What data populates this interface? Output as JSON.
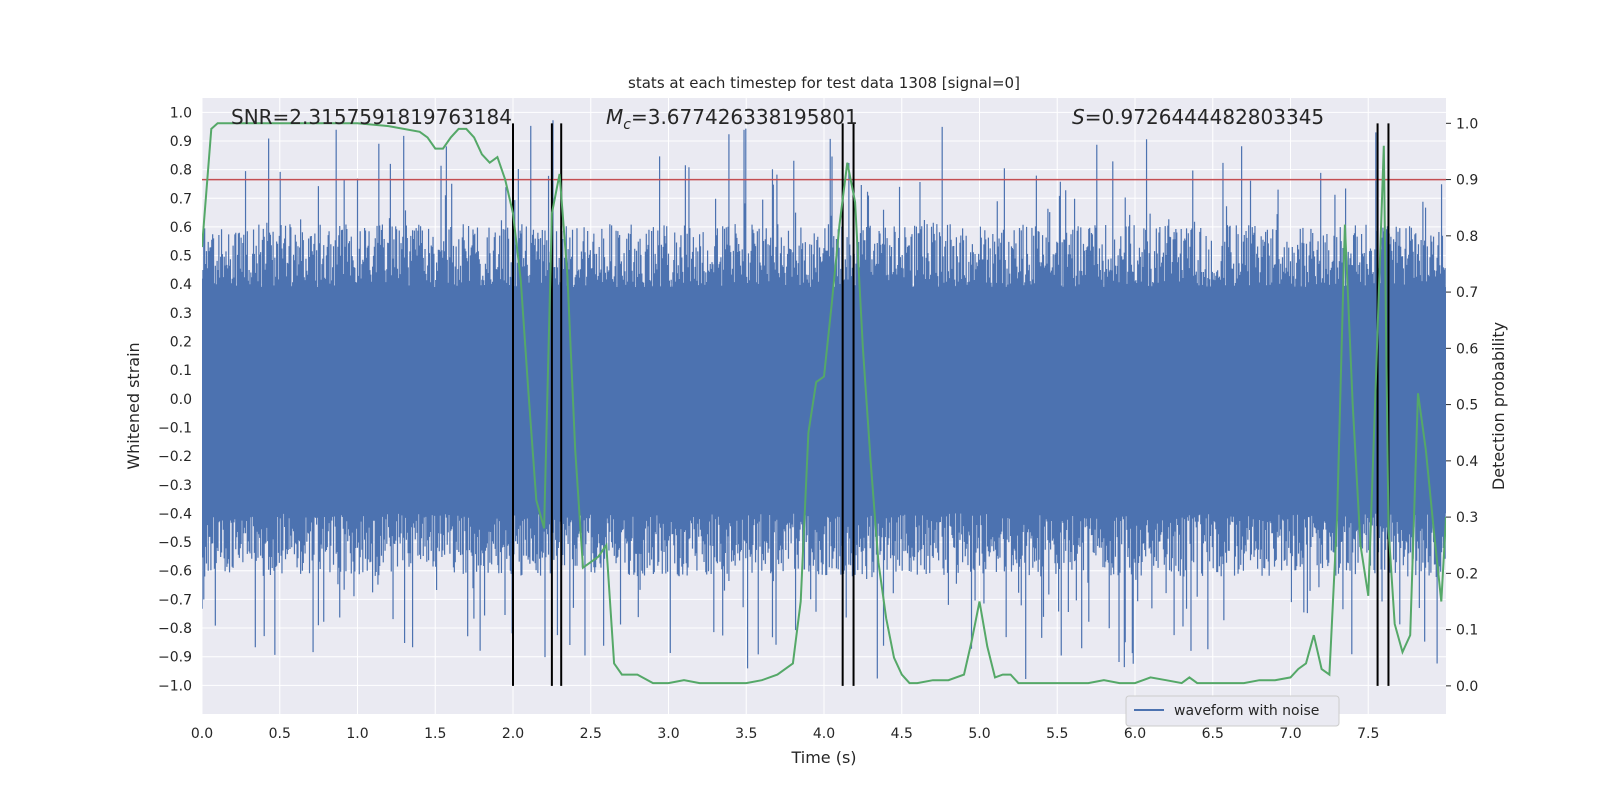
{
  "chart_data": {
    "type": "line",
    "title": "stats at each timestep for test data 1308 [signal=0]",
    "xlabel": "Time (s)",
    "ylabel": "Whitened strain",
    "y2label": "Detection probability",
    "xlim": [
      0.0,
      8.0
    ],
    "ylim": [
      -1.1,
      1.05
    ],
    "y2lim": [
      -0.05,
      1.045
    ],
    "xticks": [
      0.0,
      0.5,
      1.0,
      1.5,
      2.0,
      2.5,
      3.0,
      3.5,
      4.0,
      4.5,
      5.0,
      5.5,
      6.0,
      6.5,
      7.0,
      7.5
    ],
    "yticks": [
      1.0,
      0.9,
      0.8,
      0.7,
      0.6,
      0.5,
      0.4,
      0.3,
      0.2,
      0.1,
      0.0,
      -0.1,
      -0.2,
      -0.3,
      -0.4,
      -0.5,
      -0.6,
      -0.7,
      -0.8,
      -0.9,
      -1.0
    ],
    "y2ticks": [
      1.0,
      0.9,
      0.8,
      0.7,
      0.6,
      0.5,
      0.4,
      0.3,
      0.2,
      0.1,
      0.0
    ],
    "grid": true,
    "legend_placement": "lower-right",
    "annotations": {
      "snr": "SNR=2.3157591819763184",
      "mc_prefix": "M",
      "mc_sub": "c",
      "mc_value": "=3.677426338195801",
      "s_prefix": "S",
      "s_value": "=0.9726444482803345"
    },
    "threshold": {
      "axis": "right",
      "value": 0.9,
      "color": "#c44e52"
    },
    "vertical_markers": [
      2.0,
      2.25,
      2.31,
      4.12,
      4.19,
      7.56,
      7.63
    ],
    "series": [
      {
        "name": "waveform with noise",
        "axis": "left",
        "color": "#4c72b0",
        "kind": "dense noise",
        "core_band": [
          -0.4,
          0.39
        ],
        "typical_extremes": [
          -0.65,
          0.65
        ],
        "peak_extremes": [
          -0.99,
          0.98
        ]
      },
      {
        "axis": "right",
        "color": "#55a868",
        "x": [
          0.0,
          0.06,
          0.1,
          0.3,
          0.6,
          1.0,
          1.2,
          1.4,
          1.45,
          1.5,
          1.55,
          1.6,
          1.65,
          1.7,
          1.75,
          1.8,
          1.85,
          1.9,
          1.95,
          2.0,
          2.05,
          2.1,
          2.15,
          2.2,
          2.25,
          2.3,
          2.35,
          2.4,
          2.45,
          2.5,
          2.55,
          2.6,
          2.65,
          2.7,
          2.8,
          2.9,
          3.0,
          3.1,
          3.2,
          3.3,
          3.4,
          3.5,
          3.6,
          3.7,
          3.8,
          3.85,
          3.9,
          3.95,
          4.0,
          4.05,
          4.1,
          4.15,
          4.2,
          4.25,
          4.3,
          4.35,
          4.4,
          4.45,
          4.5,
          4.55,
          4.6,
          4.7,
          4.8,
          4.9,
          4.95,
          5.0,
          5.05,
          5.1,
          5.15,
          5.2,
          5.25,
          5.3,
          5.4,
          5.5,
          5.6,
          5.7,
          5.8,
          5.9,
          6.0,
          6.1,
          6.2,
          6.3,
          6.35,
          6.4,
          6.45,
          6.5,
          6.6,
          6.7,
          6.8,
          6.9,
          7.0,
          7.05,
          7.1,
          7.15,
          7.2,
          7.25,
          7.3,
          7.35,
          7.4,
          7.45,
          7.5,
          7.55,
          7.6,
          7.63,
          7.67,
          7.72,
          7.77,
          7.82,
          7.87,
          7.92,
          7.97,
          8.0
        ],
        "y": [
          0.78,
          0.99,
          1.0,
          1.0,
          1.0,
          1.0,
          0.995,
          0.985,
          0.975,
          0.955,
          0.955,
          0.975,
          0.99,
          0.99,
          0.975,
          0.945,
          0.93,
          0.94,
          0.9,
          0.84,
          0.72,
          0.52,
          0.33,
          0.28,
          0.84,
          0.91,
          0.73,
          0.42,
          0.21,
          0.22,
          0.23,
          0.25,
          0.04,
          0.02,
          0.02,
          0.005,
          0.005,
          0.01,
          0.005,
          0.005,
          0.005,
          0.005,
          0.01,
          0.02,
          0.04,
          0.15,
          0.45,
          0.54,
          0.55,
          0.68,
          0.82,
          0.93,
          0.86,
          0.6,
          0.4,
          0.22,
          0.12,
          0.05,
          0.02,
          0.005,
          0.005,
          0.01,
          0.01,
          0.02,
          0.08,
          0.15,
          0.07,
          0.015,
          0.02,
          0.02,
          0.005,
          0.005,
          0.005,
          0.005,
          0.005,
          0.005,
          0.01,
          0.005,
          0.005,
          0.015,
          0.01,
          0.005,
          0.015,
          0.005,
          0.005,
          0.005,
          0.005,
          0.005,
          0.01,
          0.01,
          0.015,
          0.03,
          0.04,
          0.09,
          0.03,
          0.02,
          0.3,
          0.82,
          0.5,
          0.25,
          0.16,
          0.55,
          0.96,
          0.28,
          0.11,
          0.06,
          0.09,
          0.52,
          0.42,
          0.28,
          0.15,
          0.3
        ]
      }
    ]
  }
}
